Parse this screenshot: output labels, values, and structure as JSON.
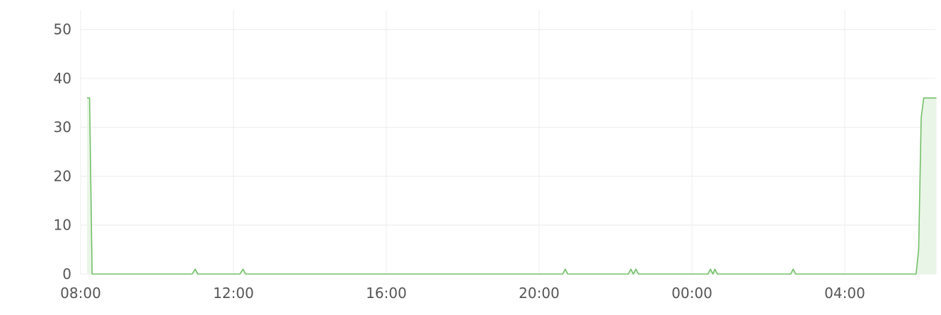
{
  "chart_data": {
    "type": "area",
    "x_type": "time",
    "y_ticks": [
      0,
      10,
      20,
      30,
      40,
      50
    ],
    "ylim": [
      0,
      54
    ],
    "x_ticks": [
      {
        "label": "08:00",
        "t": 0
      },
      {
        "label": "12:00",
        "t": 240
      },
      {
        "label": "16:00",
        "t": 480
      },
      {
        "label": "20:00",
        "t": 720
      },
      {
        "label": "00:00",
        "t": 960
      },
      {
        "label": "04:00",
        "t": 1200
      }
    ],
    "xlim_minutes": [
      0,
      1344
    ],
    "grid": true,
    "line_color": "#73bf69",
    "fill_color": "#e9f5e6",
    "series": [
      {
        "points": [
          [
            10,
            36
          ],
          [
            14,
            36
          ],
          [
            18,
            0
          ],
          [
            175,
            0
          ],
          [
            180,
            1
          ],
          [
            184,
            0
          ],
          [
            250,
            0
          ],
          [
            255,
            1
          ],
          [
            259,
            0
          ],
          [
            757,
            0
          ],
          [
            761,
            1
          ],
          [
            765,
            0
          ],
          [
            860,
            0
          ],
          [
            864,
            1
          ],
          [
            868,
            0
          ],
          [
            872,
            1
          ],
          [
            876,
            0
          ],
          [
            985,
            0
          ],
          [
            989,
            1
          ],
          [
            993,
            0
          ],
          [
            996,
            1
          ],
          [
            1000,
            0
          ],
          [
            1115,
            0
          ],
          [
            1119,
            1
          ],
          [
            1123,
            0
          ],
          [
            1312,
            0
          ],
          [
            1316,
            5
          ],
          [
            1320,
            32
          ],
          [
            1324,
            36
          ],
          [
            1344,
            36
          ]
        ]
      }
    ]
  }
}
